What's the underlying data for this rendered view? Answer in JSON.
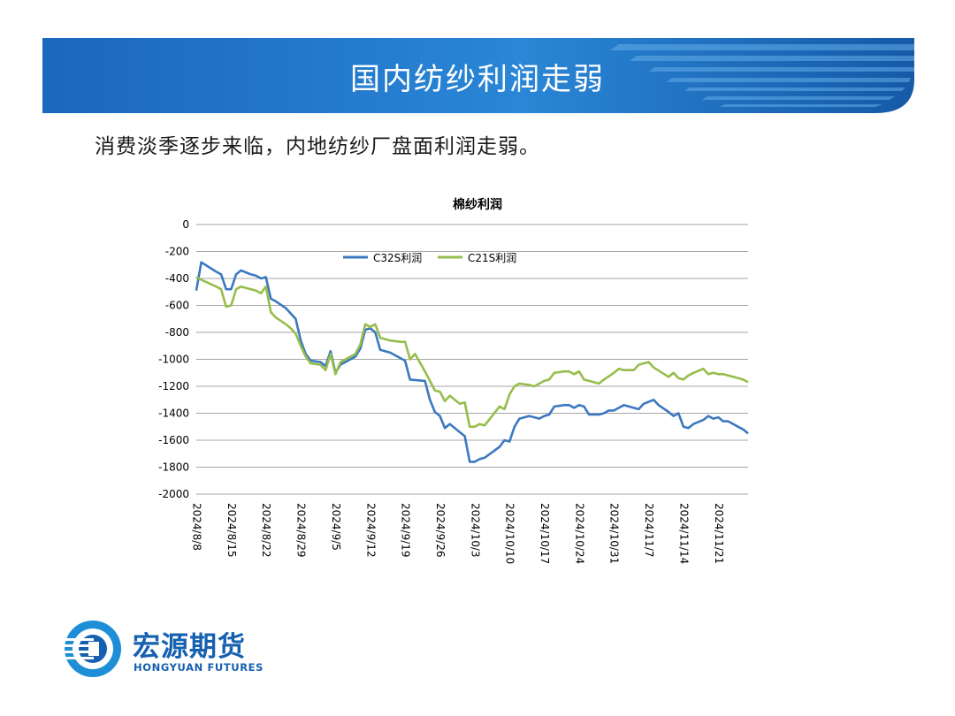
{
  "header": {
    "title": "国内纺纱利润走弱",
    "subtitle": "消费淡季逐步来临，内地纺纱厂盘面利润走弱。"
  },
  "logo": {
    "name_cn": "宏源期货",
    "name_en": "HONGYUAN FUTURES",
    "color": "#1660b0"
  },
  "colors": {
    "banner_blue": "#1f6fc4",
    "banner_light": "#4a9be0",
    "series_c32": "#3b78c0",
    "series_c21": "#96bd4c",
    "grid": "#a6a6a6"
  },
  "chart_data": {
    "type": "line",
    "title": "棉纱利润",
    "ylim": [
      -2000,
      0
    ],
    "yticks": [
      0,
      -200,
      -400,
      -600,
      -800,
      -1000,
      -1200,
      -1400,
      -1600,
      -1800,
      -2000
    ],
    "xlim": [
      "2024/8/8",
      "2024/11/27"
    ],
    "xticks": [
      "2024/8/8",
      "2024/8/15",
      "2024/8/22",
      "2024/8/29",
      "2024/9/5",
      "2024/9/12",
      "2024/9/19",
      "2024/9/26",
      "2024/10/3",
      "2024/10/10",
      "2024/10/17",
      "2024/10/24",
      "2024/10/31",
      "2024/11/7",
      "2024/11/14",
      "2024/11/21"
    ],
    "grid": "horizontal",
    "legend_position": "top",
    "series": [
      {
        "name": "C32S利润",
        "color": "#3b78c0",
        "points": [
          [
            "2024/8/8",
            -490
          ],
          [
            "2024/8/9",
            -280
          ],
          [
            "2024/8/12",
            -350
          ],
          [
            "2024/8/13",
            -370
          ],
          [
            "2024/8/14",
            -480
          ],
          [
            "2024/8/15",
            -480
          ],
          [
            "2024/8/16",
            -370
          ],
          [
            "2024/8/17",
            -340
          ],
          [
            "2024/8/19",
            -370
          ],
          [
            "2024/8/20",
            -380
          ],
          [
            "2024/8/21",
            -400
          ],
          [
            "2024/8/22",
            -390
          ],
          [
            "2024/8/23",
            -550
          ],
          [
            "2024/8/24",
            -570
          ],
          [
            "2024/8/26",
            -620
          ],
          [
            "2024/8/27",
            -660
          ],
          [
            "2024/8/28",
            -700
          ],
          [
            "2024/8/29",
            -860
          ],
          [
            "2024/8/30",
            -960
          ],
          [
            "2024/8/31",
            -1010
          ],
          [
            "2024/9/2",
            -1020
          ],
          [
            "2024/9/3",
            -1050
          ],
          [
            "2024/9/4",
            -940
          ],
          [
            "2024/9/5",
            -1100
          ],
          [
            "2024/9/6",
            -1040
          ],
          [
            "2024/9/9",
            -980
          ],
          [
            "2024/9/10",
            -920
          ],
          [
            "2024/9/11",
            -780
          ],
          [
            "2024/9/12",
            -770
          ],
          [
            "2024/9/13",
            -800
          ],
          [
            "2024/9/14",
            -930
          ],
          [
            "2024/9/16",
            -950
          ],
          [
            "2024/9/18",
            -990
          ],
          [
            "2024/9/19",
            -1010
          ],
          [
            "2024/9/20",
            -1150
          ],
          [
            "2024/9/23",
            -1160
          ],
          [
            "2024/9/24",
            -1300
          ],
          [
            "2024/9/25",
            -1390
          ],
          [
            "2024/9/26",
            -1420
          ],
          [
            "2024/9/27",
            -1510
          ],
          [
            "2024/9/28",
            -1480
          ],
          [
            "2024/9/30",
            -1540
          ],
          [
            "2024/10/1",
            -1570
          ],
          [
            "2024/10/2",
            -1760
          ],
          [
            "2024/10/3",
            -1760
          ],
          [
            "2024/10/4",
            -1740
          ],
          [
            "2024/10/5",
            -1730
          ],
          [
            "2024/10/8",
            -1650
          ],
          [
            "2024/10/9",
            -1600
          ],
          [
            "2024/10/10",
            -1610
          ],
          [
            "2024/10/11",
            -1500
          ],
          [
            "2024/10/12",
            -1440
          ],
          [
            "2024/10/14",
            -1420
          ],
          [
            "2024/10/15",
            -1430
          ],
          [
            "2024/10/16",
            -1440
          ],
          [
            "2024/10/17",
            -1420
          ],
          [
            "2024/10/18",
            -1410
          ],
          [
            "2024/10/19",
            -1350
          ],
          [
            "2024/10/21",
            -1340
          ],
          [
            "2024/10/22",
            -1340
          ],
          [
            "2024/10/23",
            -1360
          ],
          [
            "2024/10/24",
            -1340
          ],
          [
            "2024/10/25",
            -1350
          ],
          [
            "2024/10/26",
            -1410
          ],
          [
            "2024/10/28",
            -1410
          ],
          [
            "2024/10/29",
            -1400
          ],
          [
            "2024/10/30",
            -1380
          ],
          [
            "2024/10/31",
            -1380
          ],
          [
            "2024/11/1",
            -1360
          ],
          [
            "2024/11/2",
            -1340
          ],
          [
            "2024/11/4",
            -1360
          ],
          [
            "2024/11/5",
            -1370
          ],
          [
            "2024/11/6",
            -1330
          ],
          [
            "2024/11/8",
            -1300
          ],
          [
            "2024/11/9",
            -1340
          ],
          [
            "2024/11/11",
            -1390
          ],
          [
            "2024/11/12",
            -1420
          ],
          [
            "2024/11/13",
            -1400
          ],
          [
            "2024/11/14",
            -1500
          ],
          [
            "2024/11/15",
            -1510
          ],
          [
            "2024/11/16",
            -1480
          ],
          [
            "2024/11/18",
            -1450
          ],
          [
            "2024/11/19",
            -1420
          ],
          [
            "2024/11/20",
            -1440
          ],
          [
            "2024/11/21",
            -1430
          ],
          [
            "2024/11/22",
            -1460
          ],
          [
            "2024/11/23",
            -1460
          ],
          [
            "2024/11/25",
            -1500
          ],
          [
            "2024/11/26",
            -1520
          ],
          [
            "2024/11/27",
            -1550
          ]
        ]
      },
      {
        "name": "C21S利润",
        "color": "#96bd4c",
        "points": [
          [
            "2024/8/8",
            -390
          ],
          [
            "2024/8/9",
            -410
          ],
          [
            "2024/8/12",
            -460
          ],
          [
            "2024/8/13",
            -480
          ],
          [
            "2024/8/14",
            -610
          ],
          [
            "2024/8/15",
            -600
          ],
          [
            "2024/8/16",
            -480
          ],
          [
            "2024/8/17",
            -460
          ],
          [
            "2024/8/19",
            -480
          ],
          [
            "2024/8/20",
            -490
          ],
          [
            "2024/8/21",
            -510
          ],
          [
            "2024/8/22",
            -460
          ],
          [
            "2024/8/23",
            -650
          ],
          [
            "2024/8/24",
            -690
          ],
          [
            "2024/8/26",
            -740
          ],
          [
            "2024/8/27",
            -770
          ],
          [
            "2024/8/28",
            -810
          ],
          [
            "2024/8/29",
            -900
          ],
          [
            "2024/8/30",
            -980
          ],
          [
            "2024/8/31",
            -1030
          ],
          [
            "2024/9/2",
            -1040
          ],
          [
            "2024/9/3",
            -1080
          ],
          [
            "2024/9/4",
            -960
          ],
          [
            "2024/9/5",
            -1110
          ],
          [
            "2024/9/6",
            -1020
          ],
          [
            "2024/9/9",
            -960
          ],
          [
            "2024/9/10",
            -890
          ],
          [
            "2024/9/11",
            -740
          ],
          [
            "2024/9/12",
            -760
          ],
          [
            "2024/9/13",
            -740
          ],
          [
            "2024/9/14",
            -840
          ],
          [
            "2024/9/16",
            -860
          ],
          [
            "2024/9/18",
            -870
          ],
          [
            "2024/9/19",
            -870
          ],
          [
            "2024/9/20",
            -1000
          ],
          [
            "2024/9/21",
            -960
          ],
          [
            "2024/9/23",
            -1090
          ],
          [
            "2024/9/24",
            -1160
          ],
          [
            "2024/9/25",
            -1230
          ],
          [
            "2024/9/26",
            -1240
          ],
          [
            "2024/9/27",
            -1310
          ],
          [
            "2024/9/28",
            -1270
          ],
          [
            "2024/9/30",
            -1330
          ],
          [
            "2024/10/1",
            -1320
          ],
          [
            "2024/10/2",
            -1500
          ],
          [
            "2024/10/3",
            -1500
          ],
          [
            "2024/10/4",
            -1480
          ],
          [
            "2024/10/5",
            -1490
          ],
          [
            "2024/10/8",
            -1350
          ],
          [
            "2024/10/9",
            -1370
          ],
          [
            "2024/10/10",
            -1260
          ],
          [
            "2024/10/11",
            -1200
          ],
          [
            "2024/10/12",
            -1180
          ],
          [
            "2024/10/14",
            -1190
          ],
          [
            "2024/10/15",
            -1200
          ],
          [
            "2024/10/17",
            -1160
          ],
          [
            "2024/10/18",
            -1150
          ],
          [
            "2024/10/19",
            -1100
          ],
          [
            "2024/10/21",
            -1090
          ],
          [
            "2024/10/22",
            -1090
          ],
          [
            "2024/10/23",
            -1110
          ],
          [
            "2024/10/24",
            -1090
          ],
          [
            "2024/10/25",
            -1150
          ],
          [
            "2024/10/26",
            -1160
          ],
          [
            "2024/10/28",
            -1180
          ],
          [
            "2024/10/29",
            -1150
          ],
          [
            "2024/10/31",
            -1100
          ],
          [
            "2024/11/1",
            -1070
          ],
          [
            "2024/11/2",
            -1080
          ],
          [
            "2024/11/4",
            -1080
          ],
          [
            "2024/11/5",
            -1040
          ],
          [
            "2024/11/6",
            -1030
          ],
          [
            "2024/11/7",
            -1020
          ],
          [
            "2024/11/8",
            -1060
          ],
          [
            "2024/11/11",
            -1130
          ],
          [
            "2024/11/12",
            -1100
          ],
          [
            "2024/11/13",
            -1140
          ],
          [
            "2024/11/14",
            -1150
          ],
          [
            "2024/11/15",
            -1120
          ],
          [
            "2024/11/16",
            -1100
          ],
          [
            "2024/11/18",
            -1070
          ],
          [
            "2024/11/19",
            -1110
          ],
          [
            "2024/11/20",
            -1100
          ],
          [
            "2024/11/21",
            -1110
          ],
          [
            "2024/11/22",
            -1110
          ],
          [
            "2024/11/25",
            -1140
          ],
          [
            "2024/11/26",
            -1150
          ],
          [
            "2024/11/27",
            -1170
          ]
        ]
      }
    ]
  }
}
